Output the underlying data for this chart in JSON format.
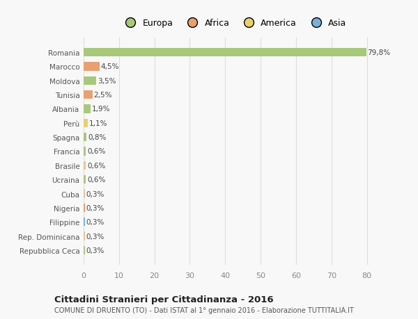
{
  "categories": [
    "Repubblica Ceca",
    "Rep. Dominicana",
    "Filippine",
    "Nigeria",
    "Cuba",
    "Ucraina",
    "Brasile",
    "Francia",
    "Spagna",
    "Perù",
    "Albania",
    "Tunisia",
    "Moldova",
    "Marocco",
    "Romania"
  ],
  "values": [
    0.3,
    0.3,
    0.3,
    0.3,
    0.3,
    0.6,
    0.6,
    0.6,
    0.8,
    1.1,
    1.9,
    2.5,
    3.5,
    4.5,
    79.8
  ],
  "labels": [
    "0,3%",
    "0,3%",
    "0,3%",
    "0,3%",
    "0,3%",
    "0,6%",
    "0,6%",
    "0,6%",
    "0,8%",
    "1,1%",
    "1,9%",
    "2,5%",
    "3,5%",
    "4,5%",
    "79,8%"
  ],
  "colors": [
    "#a8c87a",
    "#e8c49a",
    "#7ab0d8",
    "#e8a070",
    "#e8c49a",
    "#a8c87a",
    "#e8c49a",
    "#a8c87a",
    "#a8c87a",
    "#e8d070",
    "#a8c87a",
    "#e8a070",
    "#a8c87a",
    "#e8a070",
    "#a8c87a"
  ],
  "legend_labels": [
    "Europa",
    "Africa",
    "America",
    "Asia"
  ],
  "legend_colors": [
    "#a8c87a",
    "#e8a070",
    "#e8d070",
    "#7ab0d8"
  ],
  "title": "Cittadini Stranieri per Cittadinanza - 2016",
  "subtitle": "COMUNE DI DRUENTO (TO) - Dati ISTAT al 1° gennaio 2016 - Elaborazione TUTTITALIA.IT",
  "xlim": [
    0,
    85
  ],
  "xticks": [
    0,
    10,
    20,
    30,
    40,
    50,
    60,
    70,
    80
  ],
  "background_color": "#f8f8f8",
  "grid_color": "#dddddd",
  "bar_height": 0.6
}
